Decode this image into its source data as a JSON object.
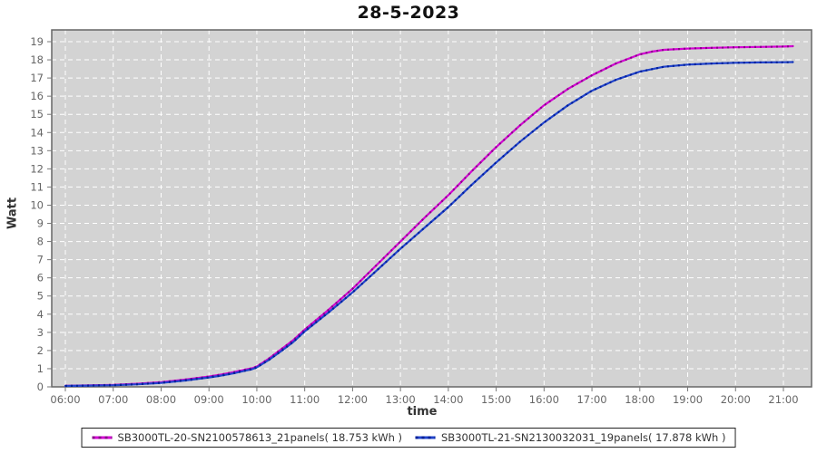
{
  "title": "28-5-2023",
  "axes": {
    "y_label": "Watt",
    "x_label": "time",
    "y_ticks": [
      0,
      1,
      2,
      3,
      4,
      5,
      6,
      7,
      8,
      9,
      10,
      11,
      12,
      13,
      14,
      15,
      16,
      17,
      18,
      19
    ],
    "x_ticks": [
      {
        "hour": 6,
        "label": "06:00"
      },
      {
        "hour": 7,
        "label": "07:00"
      },
      {
        "hour": 8,
        "label": "08:00"
      },
      {
        "hour": 9,
        "label": "09:00"
      },
      {
        "hour": 10,
        "label": "10:00"
      },
      {
        "hour": 11,
        "label": "11:00"
      },
      {
        "hour": 12,
        "label": "12:00"
      },
      {
        "hour": 13,
        "label": "13:00"
      },
      {
        "hour": 14,
        "label": "14:00"
      },
      {
        "hour": 15,
        "label": "15:00"
      },
      {
        "hour": 16,
        "label": "16:00"
      },
      {
        "hour": 17,
        "label": "17:00"
      },
      {
        "hour": 18,
        "label": "18:00"
      },
      {
        "hour": 19,
        "label": "19:00"
      },
      {
        "hour": 20,
        "label": "20:00"
      },
      {
        "hour": 21,
        "label": "21:00"
      }
    ]
  },
  "colors": {
    "plot_bg": "#d3d3d3",
    "grid": "#ffffff",
    "plot_border": "#666666",
    "tick": "#777777",
    "tick_label": "#666666",
    "title": "#111111",
    "legend_border": "#222222"
  },
  "chart_data": {
    "type": "line",
    "title": "28-5-2023",
    "xlabel": "time",
    "ylabel": "Watt",
    "x_unit": "hour-of-day",
    "x_range_hours": [
      5.72,
      21.6
    ],
    "ylim": [
      0,
      19.6
    ],
    "grid": "white dashed, every hour and every 1 Watt",
    "legend_position": "bottom-center",
    "series": [
      {
        "name": "SB3000TL-20-SN2100578613_21panels( 18.753 kWh )",
        "total_kwh": 18.753,
        "color": "#d400d4",
        "dash_color": "#8a008a",
        "points": [
          [
            6.0,
            0.06
          ],
          [
            6.5,
            0.08
          ],
          [
            7.0,
            0.11
          ],
          [
            7.5,
            0.17
          ],
          [
            8.0,
            0.26
          ],
          [
            8.5,
            0.4
          ],
          [
            9.0,
            0.57
          ],
          [
            9.25,
            0.68
          ],
          [
            9.5,
            0.8
          ],
          [
            9.7,
            0.92
          ],
          [
            9.9,
            1.02
          ],
          [
            10.0,
            1.12
          ],
          [
            10.25,
            1.55
          ],
          [
            10.5,
            2.05
          ],
          [
            10.75,
            2.55
          ],
          [
            11.0,
            3.15
          ],
          [
            11.5,
            4.25
          ],
          [
            12.0,
            5.4
          ],
          [
            12.5,
            6.7
          ],
          [
            13.0,
            8.0
          ],
          [
            13.5,
            9.3
          ],
          [
            14.0,
            10.55
          ],
          [
            14.5,
            11.9
          ],
          [
            15.0,
            13.2
          ],
          [
            15.5,
            14.4
          ],
          [
            16.0,
            15.5
          ],
          [
            16.5,
            16.4
          ],
          [
            17.0,
            17.15
          ],
          [
            17.5,
            17.8
          ],
          [
            18.0,
            18.3
          ],
          [
            18.25,
            18.45
          ],
          [
            18.5,
            18.55
          ],
          [
            19.0,
            18.62
          ],
          [
            19.5,
            18.66
          ],
          [
            20.0,
            18.69
          ],
          [
            20.5,
            18.71
          ],
          [
            21.0,
            18.73
          ],
          [
            21.2,
            18.75
          ]
        ]
      },
      {
        "name": "SB3000TL-21-SN2130032031_19panels( 17.878 kWh )",
        "total_kwh": 17.878,
        "color": "#2244cc",
        "dash_color": "#001f99",
        "points": [
          [
            6.0,
            0.05
          ],
          [
            6.5,
            0.07
          ],
          [
            7.0,
            0.09
          ],
          [
            7.5,
            0.14
          ],
          [
            8.0,
            0.22
          ],
          [
            8.5,
            0.35
          ],
          [
            9.0,
            0.52
          ],
          [
            9.25,
            0.62
          ],
          [
            9.5,
            0.74
          ],
          [
            9.7,
            0.86
          ],
          [
            9.9,
            0.97
          ],
          [
            10.0,
            1.07
          ],
          [
            10.25,
            1.48
          ],
          [
            10.5,
            1.95
          ],
          [
            10.75,
            2.45
          ],
          [
            11.0,
            3.05
          ],
          [
            11.5,
            4.1
          ],
          [
            12.0,
            5.2
          ],
          [
            12.5,
            6.4
          ],
          [
            13.0,
            7.6
          ],
          [
            13.5,
            8.75
          ],
          [
            14.0,
            9.9
          ],
          [
            14.5,
            11.15
          ],
          [
            15.0,
            12.35
          ],
          [
            15.5,
            13.5
          ],
          [
            16.0,
            14.55
          ],
          [
            16.5,
            15.5
          ],
          [
            17.0,
            16.3
          ],
          [
            17.5,
            16.9
          ],
          [
            18.0,
            17.35
          ],
          [
            18.5,
            17.62
          ],
          [
            19.0,
            17.74
          ],
          [
            19.5,
            17.8
          ],
          [
            20.0,
            17.84
          ],
          [
            20.5,
            17.86
          ],
          [
            21.0,
            17.87
          ],
          [
            21.2,
            17.88
          ]
        ]
      }
    ]
  }
}
